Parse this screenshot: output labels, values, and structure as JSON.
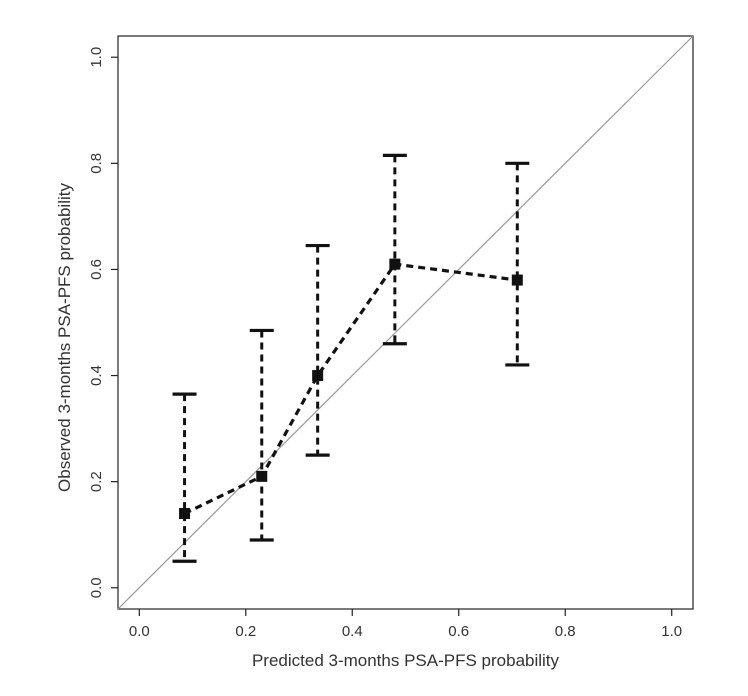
{
  "chart_data": {
    "type": "scatter",
    "xlabel": "Predicted 3-months PSA-PFS probability",
    "ylabel": "Observed 3-months PSA-PFS probability",
    "xlim": [
      -0.04,
      1.04
    ],
    "ylim": [
      -0.04,
      1.04
    ],
    "x_ticks": [
      "0.0",
      "0.2",
      "0.4",
      "0.6",
      "0.8",
      "1.0"
    ],
    "y_ticks": [
      "0.0",
      "0.2",
      "0.4",
      "0.6",
      "0.8",
      "1.0"
    ],
    "reference_line": {
      "from": [
        -0.04,
        -0.04
      ],
      "to": [
        1.04,
        1.04
      ],
      "color": "#999999"
    },
    "series": [
      {
        "x": [
          0.085,
          0.23,
          0.335,
          0.48,
          0.71
        ],
        "y": [
          0.14,
          0.21,
          0.4,
          0.61,
          0.58
        ],
        "lower": [
          0.05,
          0.09,
          0.25,
          0.46,
          0.42
        ],
        "upper": [
          0.365,
          0.485,
          0.645,
          0.815,
          0.8
        ],
        "color": "#111111"
      }
    ],
    "grid": false,
    "legend": "none"
  }
}
